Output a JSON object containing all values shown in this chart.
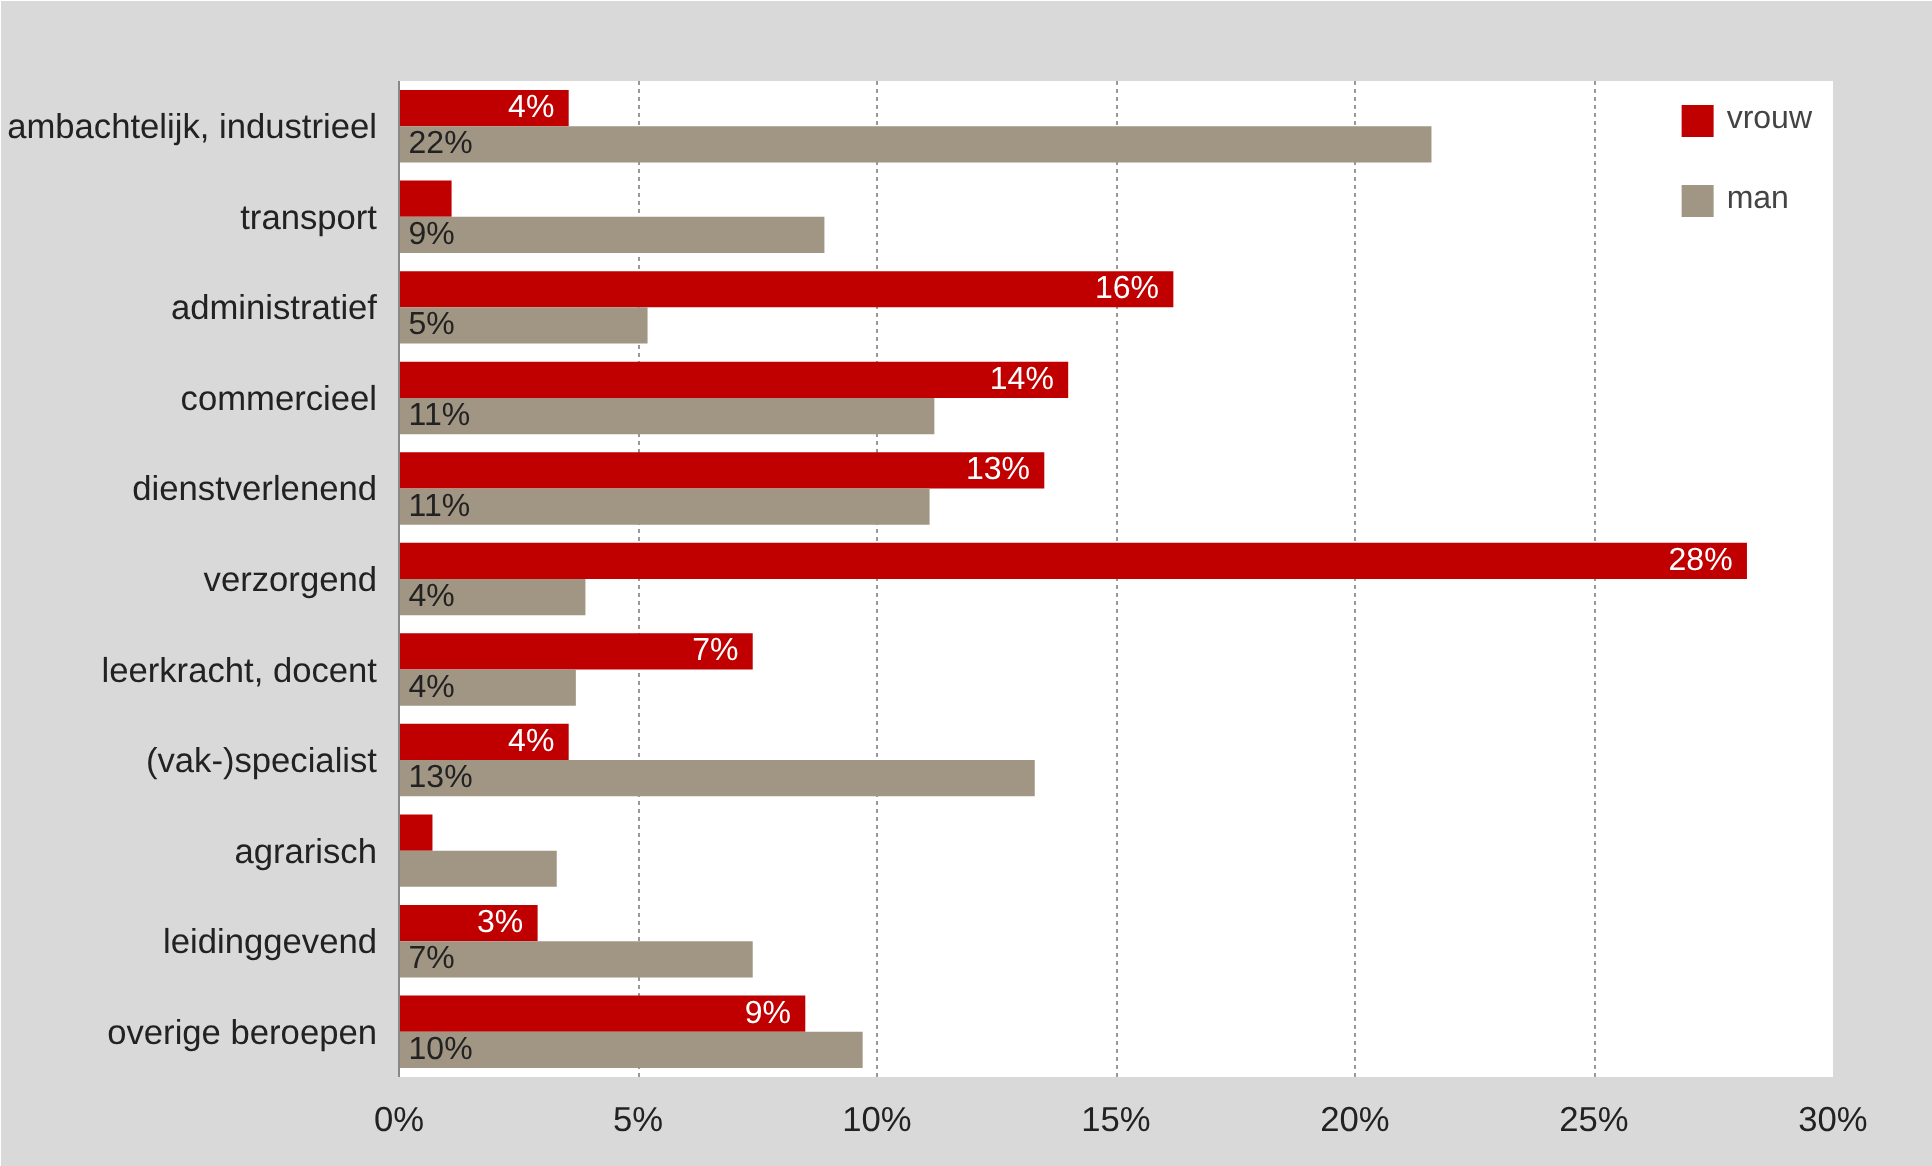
{
  "chart_data": {
    "type": "bar",
    "orientation": "horizontal",
    "categories": [
      "ambachtelijk, industrieel",
      "transport",
      "administratief",
      "commercieel",
      "dienstverlenend",
      "verzorgend",
      "leerkracht, docent",
      "(vak-)specialist",
      "agrarisch",
      "leidinggevend",
      "overige beroepen"
    ],
    "series": [
      {
        "name": "vrouw",
        "color": "#c00000",
        "values": [
          3.55,
          1.1,
          16.2,
          14.0,
          13.5,
          28.2,
          7.4,
          3.55,
          0.7,
          2.9,
          8.5
        ],
        "value_labels": [
          "4%",
          null,
          "16%",
          "14%",
          "13%",
          "28%",
          "7%",
          "4%",
          null,
          "3%",
          "9%"
        ]
      },
      {
        "name": "man",
        "color": "#a09683",
        "values": [
          21.6,
          8.9,
          5.2,
          11.2,
          11.1,
          3.9,
          3.7,
          13.3,
          3.3,
          7.4,
          9.7
        ],
        "value_labels": [
          "22%",
          "9%",
          "5%",
          "11%",
          "11%",
          "4%",
          "4%",
          "13%",
          null,
          "7%",
          "10%"
        ]
      }
    ],
    "xlim": [
      0,
      30
    ],
    "xticks": [
      {
        "value": 0,
        "label": "0%"
      },
      {
        "value": 5,
        "label": "5%"
      },
      {
        "value": 10,
        "label": "10%"
      },
      {
        "value": 15,
        "label": "15%"
      },
      {
        "value": 20,
        "label": "20%"
      },
      {
        "value": 25,
        "label": "25%"
      },
      {
        "value": 30,
        "label": "30%"
      }
    ],
    "grid": "x",
    "legend": "top right"
  }
}
